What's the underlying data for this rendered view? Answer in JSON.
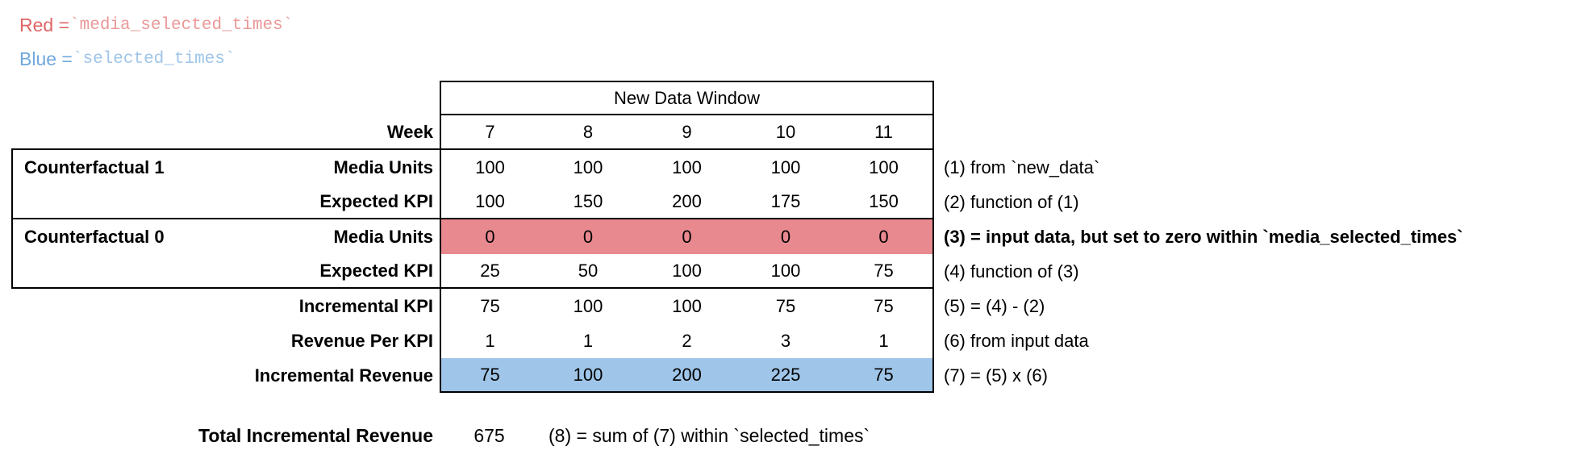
{
  "legend": {
    "red_label": "Red = ",
    "red_code": "`media_selected_times`",
    "blue_label": "Blue = ",
    "blue_code": "`selected_times`"
  },
  "table": {
    "header": "New Data Window",
    "week_label": "Week",
    "weeks": [
      "7",
      "8",
      "9",
      "10",
      "11"
    ],
    "rows": [
      {
        "group": "Counterfactual 1",
        "label": "Media Units",
        "values": [
          "100",
          "100",
          "100",
          "100",
          "100"
        ],
        "note": "(1) from `new_data`"
      },
      {
        "group": "",
        "label": "Expected KPI",
        "values": [
          "100",
          "150",
          "200",
          "175",
          "150"
        ],
        "note": "(2) function of (1)"
      },
      {
        "group": "Counterfactual 0",
        "label": "Media Units",
        "values": [
          "0",
          "0",
          "0",
          "0",
          "0"
        ],
        "note": "(3) = input data, but set to zero within `media_selected_times`",
        "highlight": "red"
      },
      {
        "group": "",
        "label": "Expected KPI",
        "values": [
          "25",
          "50",
          "100",
          "100",
          "75"
        ],
        "note": "(4) function of (3)"
      },
      {
        "group": "",
        "label": "Incremental KPI",
        "values": [
          "75",
          "100",
          "100",
          "75",
          "75"
        ],
        "note": "(5) = (4) - (2)"
      },
      {
        "group": "",
        "label": "Revenue Per KPI",
        "values": [
          "1",
          "1",
          "2",
          "3",
          "1"
        ],
        "note": "(6) from input data"
      },
      {
        "group": "",
        "label": "Incremental Revenue",
        "values": [
          "75",
          "100",
          "200",
          "225",
          "75"
        ],
        "note": "(7) = (5) x (6)",
        "highlight": "blue"
      }
    ]
  },
  "summary": {
    "label": "Total Incremental Revenue",
    "value": "675",
    "note": "(8) = sum of (7) within `selected_times`"
  },
  "colors": {
    "red_highlight": "#e8898f",
    "blue_highlight": "#9fc5e8",
    "red_text": "#e06666",
    "red_code": "#ea9999",
    "blue_text": "#6fa8dc",
    "blue_code": "#9fc5e8"
  }
}
